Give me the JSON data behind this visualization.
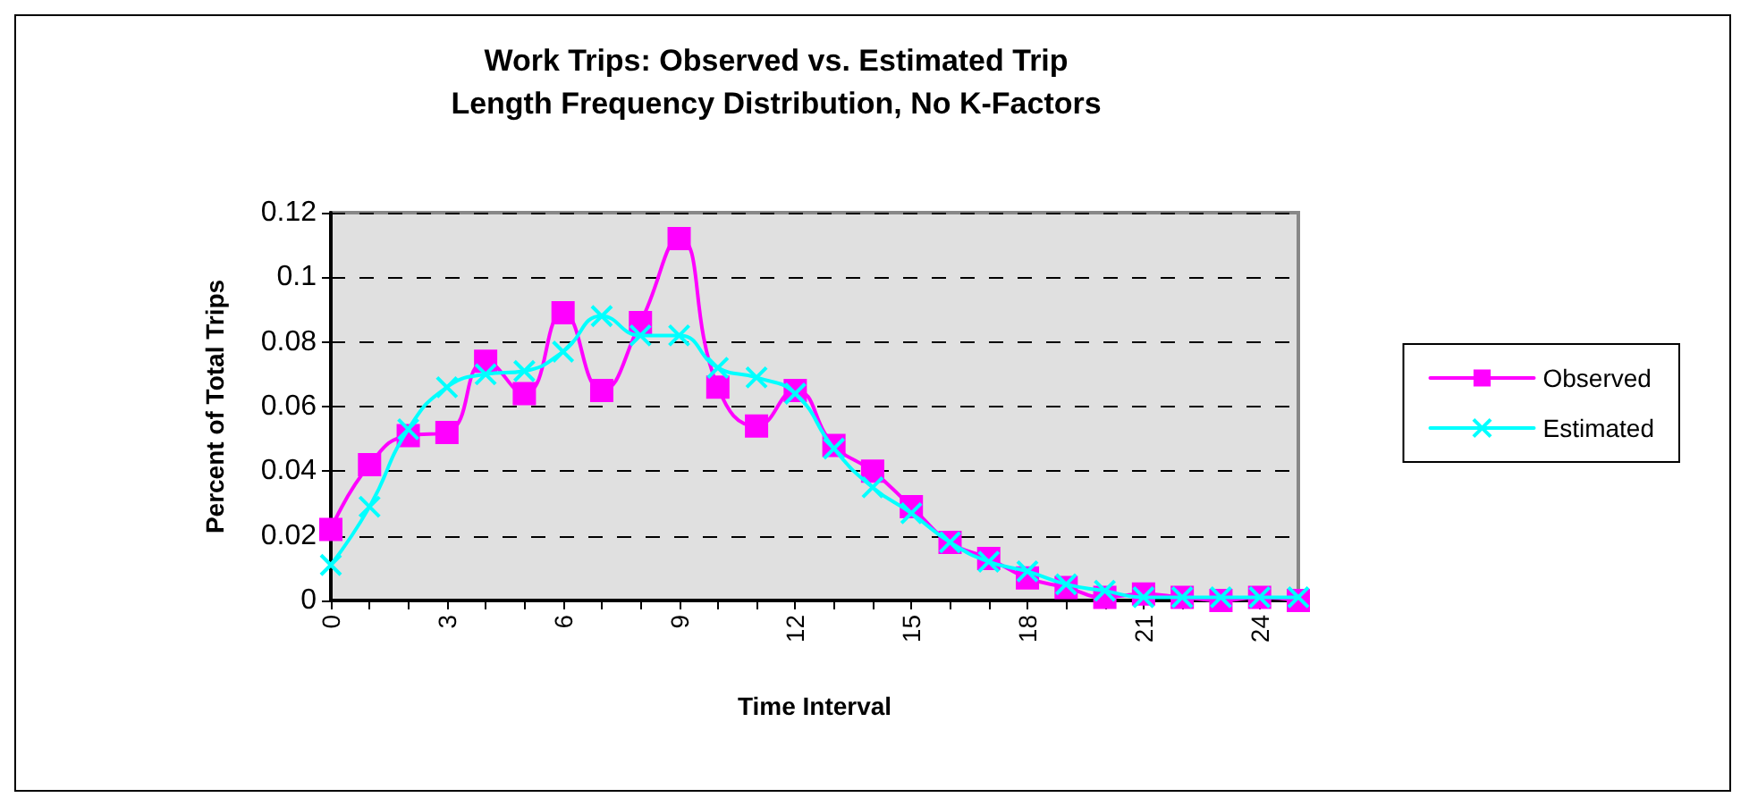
{
  "chart_data": {
    "type": "line",
    "title": "Work Trips: Observed vs. Estimated Trip\nLength Frequency Distribution, No K-Factors",
    "xlabel": "Time Interval",
    "ylabel": "Percent of Total Trips",
    "categories": [
      "0",
      null,
      null,
      "3",
      null,
      null,
      "6",
      null,
      null,
      "9",
      null,
      null,
      "12",
      null,
      null,
      "15",
      null,
      null,
      "18",
      null,
      null,
      "21",
      null,
      null,
      "24",
      null
    ],
    "series": [
      {
        "name": "Observed",
        "color": "#ff00ff",
        "marker": "square",
        "values": [
          0.022,
          0.042,
          0.051,
          0.052,
          0.074,
          0.064,
          0.089,
          0.065,
          0.086,
          0.112,
          0.066,
          0.054,
          0.065,
          0.048,
          0.04,
          0.029,
          0.018,
          0.013,
          0.007,
          0.004,
          0.001,
          0.002,
          0.001,
          0,
          0.001,
          0
        ]
      },
      {
        "name": "Estimated",
        "color": "#00ffff",
        "marker": "cross",
        "values": [
          0.011,
          0.029,
          0.053,
          0.066,
          0.07,
          0.071,
          0.077,
          0.088,
          0.082,
          0.082,
          0.072,
          0.069,
          0.064,
          0.047,
          0.035,
          0.027,
          0.018,
          0.012,
          0.009,
          0.005,
          0.003,
          0.001,
          0.001,
          0.001,
          0.001,
          0.001
        ]
      }
    ],
    "ylim": [
      0,
      0.12
    ],
    "yticks": [
      0,
      0.02,
      0.04,
      0.06,
      0.08,
      0.1,
      0.12
    ],
    "grid": "y",
    "legend": "right",
    "line_style": "solid"
  }
}
